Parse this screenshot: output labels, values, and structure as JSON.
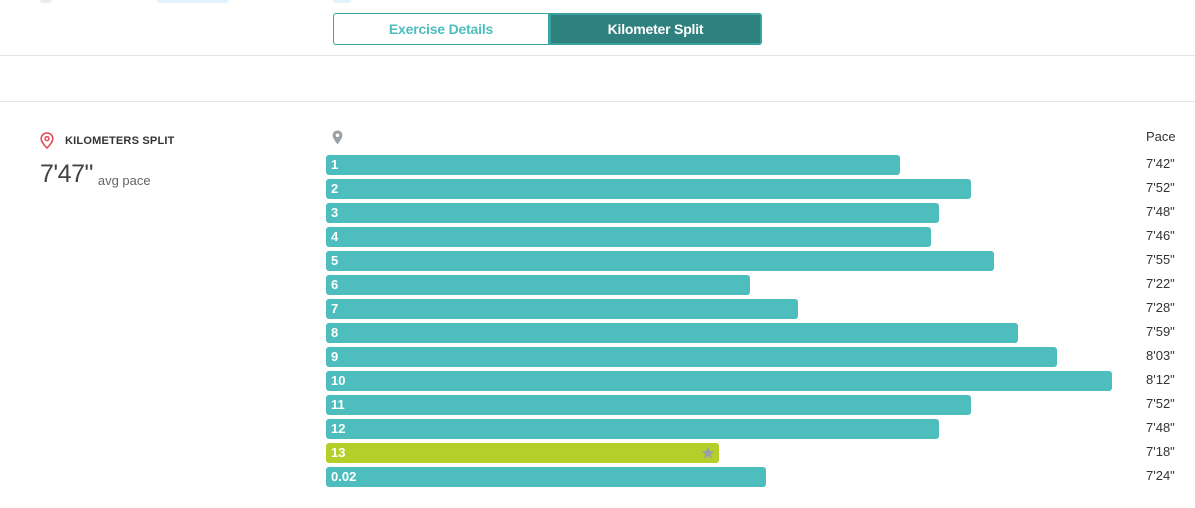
{
  "tabs": {
    "exercise_details": "Exercise Details",
    "kilometer_split": "Kilometer Split"
  },
  "summary": {
    "title": "KILOMETERS SPLIT",
    "avg_value": "7'47\"",
    "avg_label": "avg pace"
  },
  "table": {
    "pace_header": "Pace"
  },
  "colors": {
    "bar": "#4dbdbd",
    "best": "#b5cf2a",
    "tab_active": "#2e817e",
    "pin_red": "#e24a5b"
  },
  "chart_data": {
    "type": "bar",
    "orientation": "horizontal",
    "categories": [
      "1",
      "2",
      "3",
      "4",
      "5",
      "6",
      "7",
      "8",
      "9",
      "10",
      "11",
      "12",
      "13",
      "0.02"
    ],
    "values": [
      0.73,
      0.82,
      0.78,
      0.77,
      0.85,
      0.54,
      0.6,
      0.88,
      0.93,
      1.0,
      0.82,
      0.78,
      0.5,
      0.56
    ],
    "pace_labels": [
      "7'42\"",
      "7'52\"",
      "7'48\"",
      "7'46\"",
      "7'55\"",
      "7'22\"",
      "7'28\"",
      "7'59\"",
      "8'03\"",
      "8'12\"",
      "7'52\"",
      "7'48\"",
      "7'18\"",
      "7'24\""
    ],
    "highlight_index": 12,
    "ylabel": "Pace"
  }
}
